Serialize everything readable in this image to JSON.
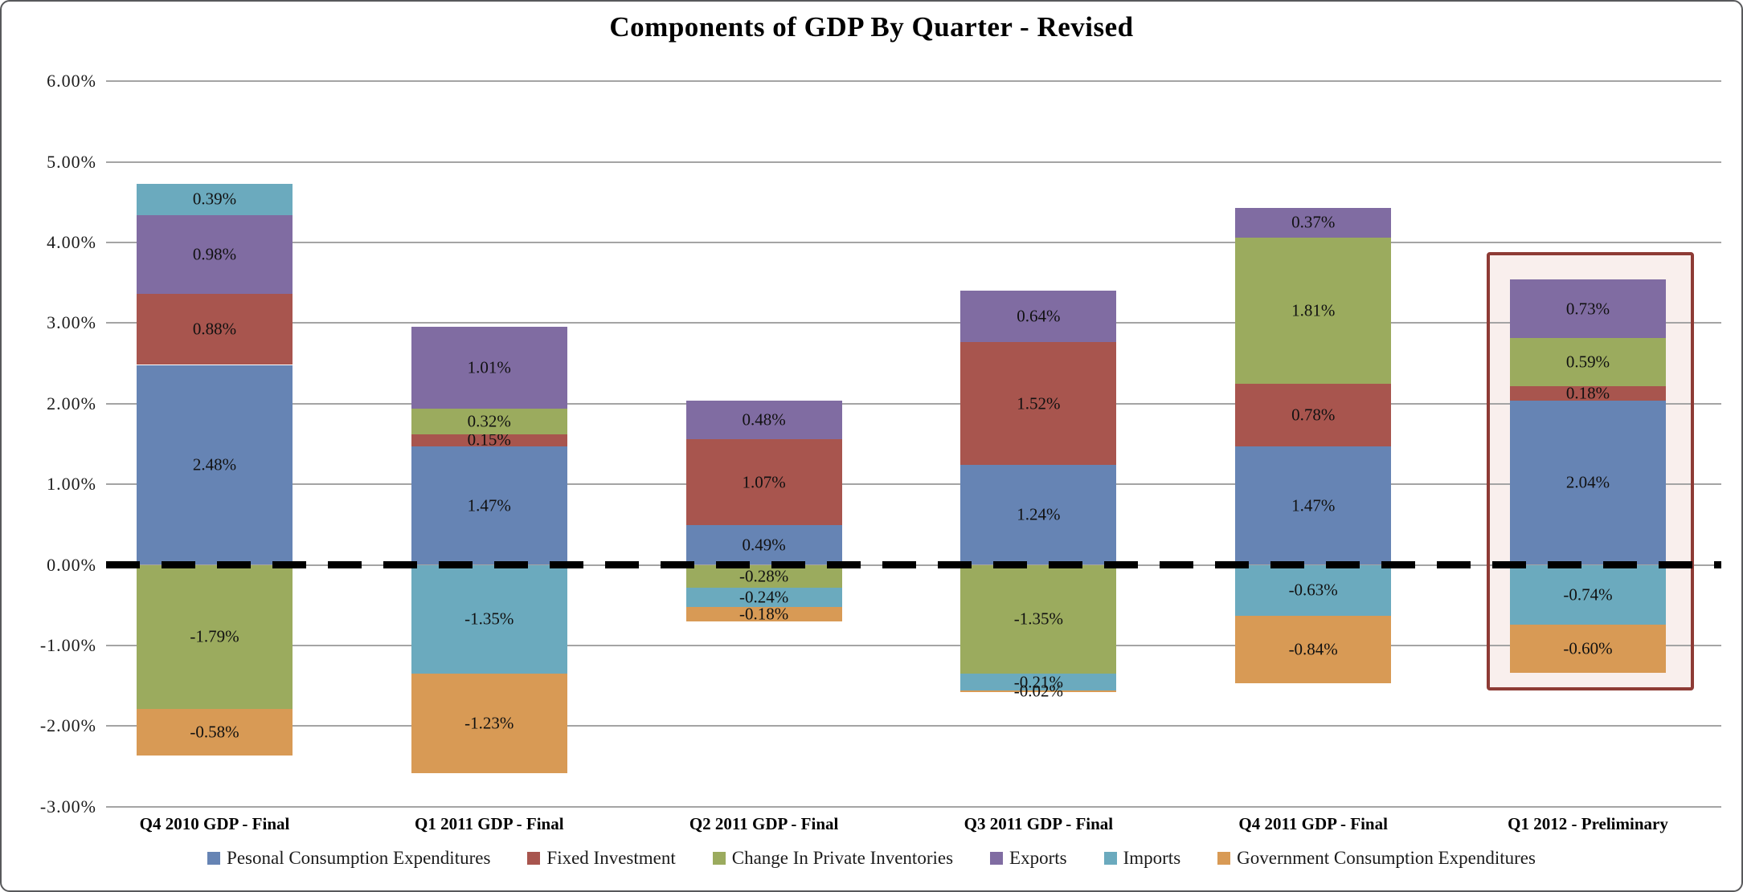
{
  "chart_data": {
    "type": "bar",
    "subtype": "stacked-column",
    "title": "Components of GDP By Quarter - Revised",
    "categories": [
      "Q4 2010 GDP - Final",
      "Q1 2011 GDP - Final",
      "Q2 2011 GDP - Final",
      "Q3 2011 GDP - Final",
      "Q4 2011 GDP - Final",
      "Q1 2012 - Preliminary"
    ],
    "series": [
      {
        "name": "Pesonal Consumption Expenditures",
        "color": "#6684B4",
        "values": [
          2.48,
          1.47,
          0.49,
          1.24,
          1.47,
          2.04
        ],
        "labels": [
          "2.48%",
          "1.47%",
          "0.49%",
          "1.24%",
          "1.47%",
          "2.04%"
        ]
      },
      {
        "name": "Fixed Investment",
        "color": "#A8554E",
        "values": [
          0.88,
          0.15,
          1.07,
          1.52,
          0.78,
          0.18
        ],
        "labels": [
          "0.88%",
          "0.15%",
          "1.07%",
          "1.52%",
          "0.78%",
          "0.18%"
        ]
      },
      {
        "name": "Change In Private Inventories",
        "color": "#9BAB5E",
        "values": [
          -1.79,
          0.32,
          -0.28,
          -1.35,
          1.81,
          0.59
        ],
        "labels": [
          "-1.79%",
          "0.32%",
          "-0.28%",
          "-1.35%",
          "1.81%",
          "0.59%"
        ]
      },
      {
        "name": "Exports",
        "color": "#806CA2",
        "values": [
          0.98,
          1.01,
          0.48,
          0.64,
          0.37,
          0.73
        ],
        "labels": [
          "0.98%",
          "1.01%",
          "0.48%",
          "0.64%",
          "0.37%",
          "0.73%"
        ]
      },
      {
        "name": "Imports",
        "color": "#6BAABE",
        "values": [
          0.39,
          -1.35,
          -0.24,
          -0.21,
          -0.63,
          -0.74
        ],
        "labels": [
          "0.39%",
          "-1.35%",
          "-0.24%",
          "-0.21%",
          "-0.63%",
          "-0.74%"
        ]
      },
      {
        "name": "Government Consumption Expenditures",
        "color": "#D89A55",
        "values": [
          -0.58,
          -1.23,
          -0.18,
          -0.02,
          -0.84,
          -0.6
        ],
        "labels": [
          "-0.58%",
          "-1.23%",
          "-0.18%",
          "-0.02%",
          "-0.84%",
          "-0.60%"
        ]
      }
    ],
    "y_axis": {
      "min": -3,
      "max": 6,
      "step": 1,
      "tick_labels": [
        "6.00%",
        "5.00%",
        "4.00%",
        "3.00%",
        "2.00%",
        "1.00%",
        "0.00%",
        "-1.00%",
        "-2.00%",
        "-3.00%"
      ]
    },
    "grid": true,
    "zero_line": {
      "style": "dashed",
      "color": "#000000"
    },
    "legend": {
      "position": "bottom"
    },
    "highlight": {
      "category": "Q1 2012 - Preliminary",
      "category_index": 5,
      "border_color": "#8E3B35",
      "fill_color": "#F9EFED"
    }
  }
}
